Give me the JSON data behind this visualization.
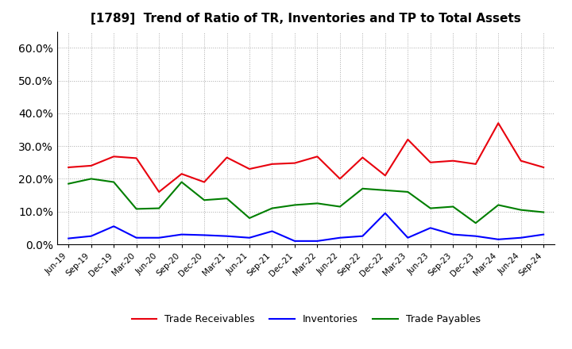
{
  "title": "[1789]  Trend of Ratio of TR, Inventories and TP to Total Assets",
  "labels": [
    "Jun-19",
    "Sep-19",
    "Dec-19",
    "Mar-20",
    "Jun-20",
    "Sep-20",
    "Dec-20",
    "Mar-21",
    "Jun-21",
    "Sep-21",
    "Dec-21",
    "Mar-22",
    "Jun-22",
    "Sep-22",
    "Dec-22",
    "Mar-23",
    "Jun-23",
    "Sep-23",
    "Dec-23",
    "Mar-24",
    "Jun-24",
    "Sep-24"
  ],
  "trade_receivables": [
    0.235,
    0.24,
    0.268,
    0.263,
    0.16,
    0.215,
    0.19,
    0.265,
    0.23,
    0.245,
    0.248,
    0.268,
    0.2,
    0.265,
    0.21,
    0.32,
    0.25,
    0.255,
    0.245,
    0.37,
    0.255,
    0.235
  ],
  "inventories": [
    0.018,
    0.025,
    0.055,
    0.02,
    0.02,
    0.03,
    0.028,
    0.025,
    0.02,
    0.04,
    0.01,
    0.01,
    0.02,
    0.025,
    0.095,
    0.02,
    0.05,
    0.03,
    0.025,
    0.015,
    0.02,
    0.03
  ],
  "trade_payables": [
    0.185,
    0.2,
    0.19,
    0.108,
    0.11,
    0.19,
    0.135,
    0.14,
    0.08,
    0.11,
    0.12,
    0.125,
    0.115,
    0.17,
    0.165,
    0.16,
    0.11,
    0.115,
    0.065,
    0.12,
    0.105,
    0.098
  ],
  "tr_color": "#e8000d",
  "inv_color": "#0000ff",
  "tp_color": "#007f00",
  "ylim": [
    0.0,
    0.65
  ],
  "yticks": [
    0.0,
    0.1,
    0.2,
    0.3,
    0.4,
    0.5,
    0.6
  ],
  "legend_labels": [
    "Trade Receivables",
    "Inventories",
    "Trade Payables"
  ],
  "bg_color": "#ffffff",
  "grid_color": "#aaaaaa"
}
